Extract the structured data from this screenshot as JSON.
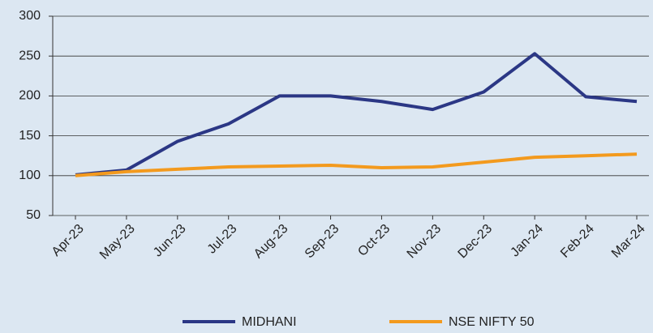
{
  "chart_data": {
    "type": "line",
    "categories": [
      "Apr-23",
      "May-23",
      "Jun-23",
      "Jul-23",
      "Aug-23",
      "Sep-23",
      "Oct-23",
      "Nov-23",
      "Dec-23",
      "Jan-24",
      "Feb-24",
      "Mar-24"
    ],
    "series": [
      {
        "name": "MIDHANI",
        "color": "#2b3785",
        "values": [
          101,
          107,
          143,
          165,
          200,
          200,
          193,
          183,
          205,
          253,
          199,
          193
        ]
      },
      {
        "name": "NSE NIFTY 50",
        "color": "#f39a1e",
        "values": [
          100,
          105,
          108,
          111,
          112,
          113,
          110,
          111,
          117,
          123,
          125,
          127
        ]
      }
    ],
    "ylim": [
      50,
      300
    ],
    "yticks": [
      50,
      100,
      150,
      200,
      250,
      300
    ],
    "grid": true
  }
}
